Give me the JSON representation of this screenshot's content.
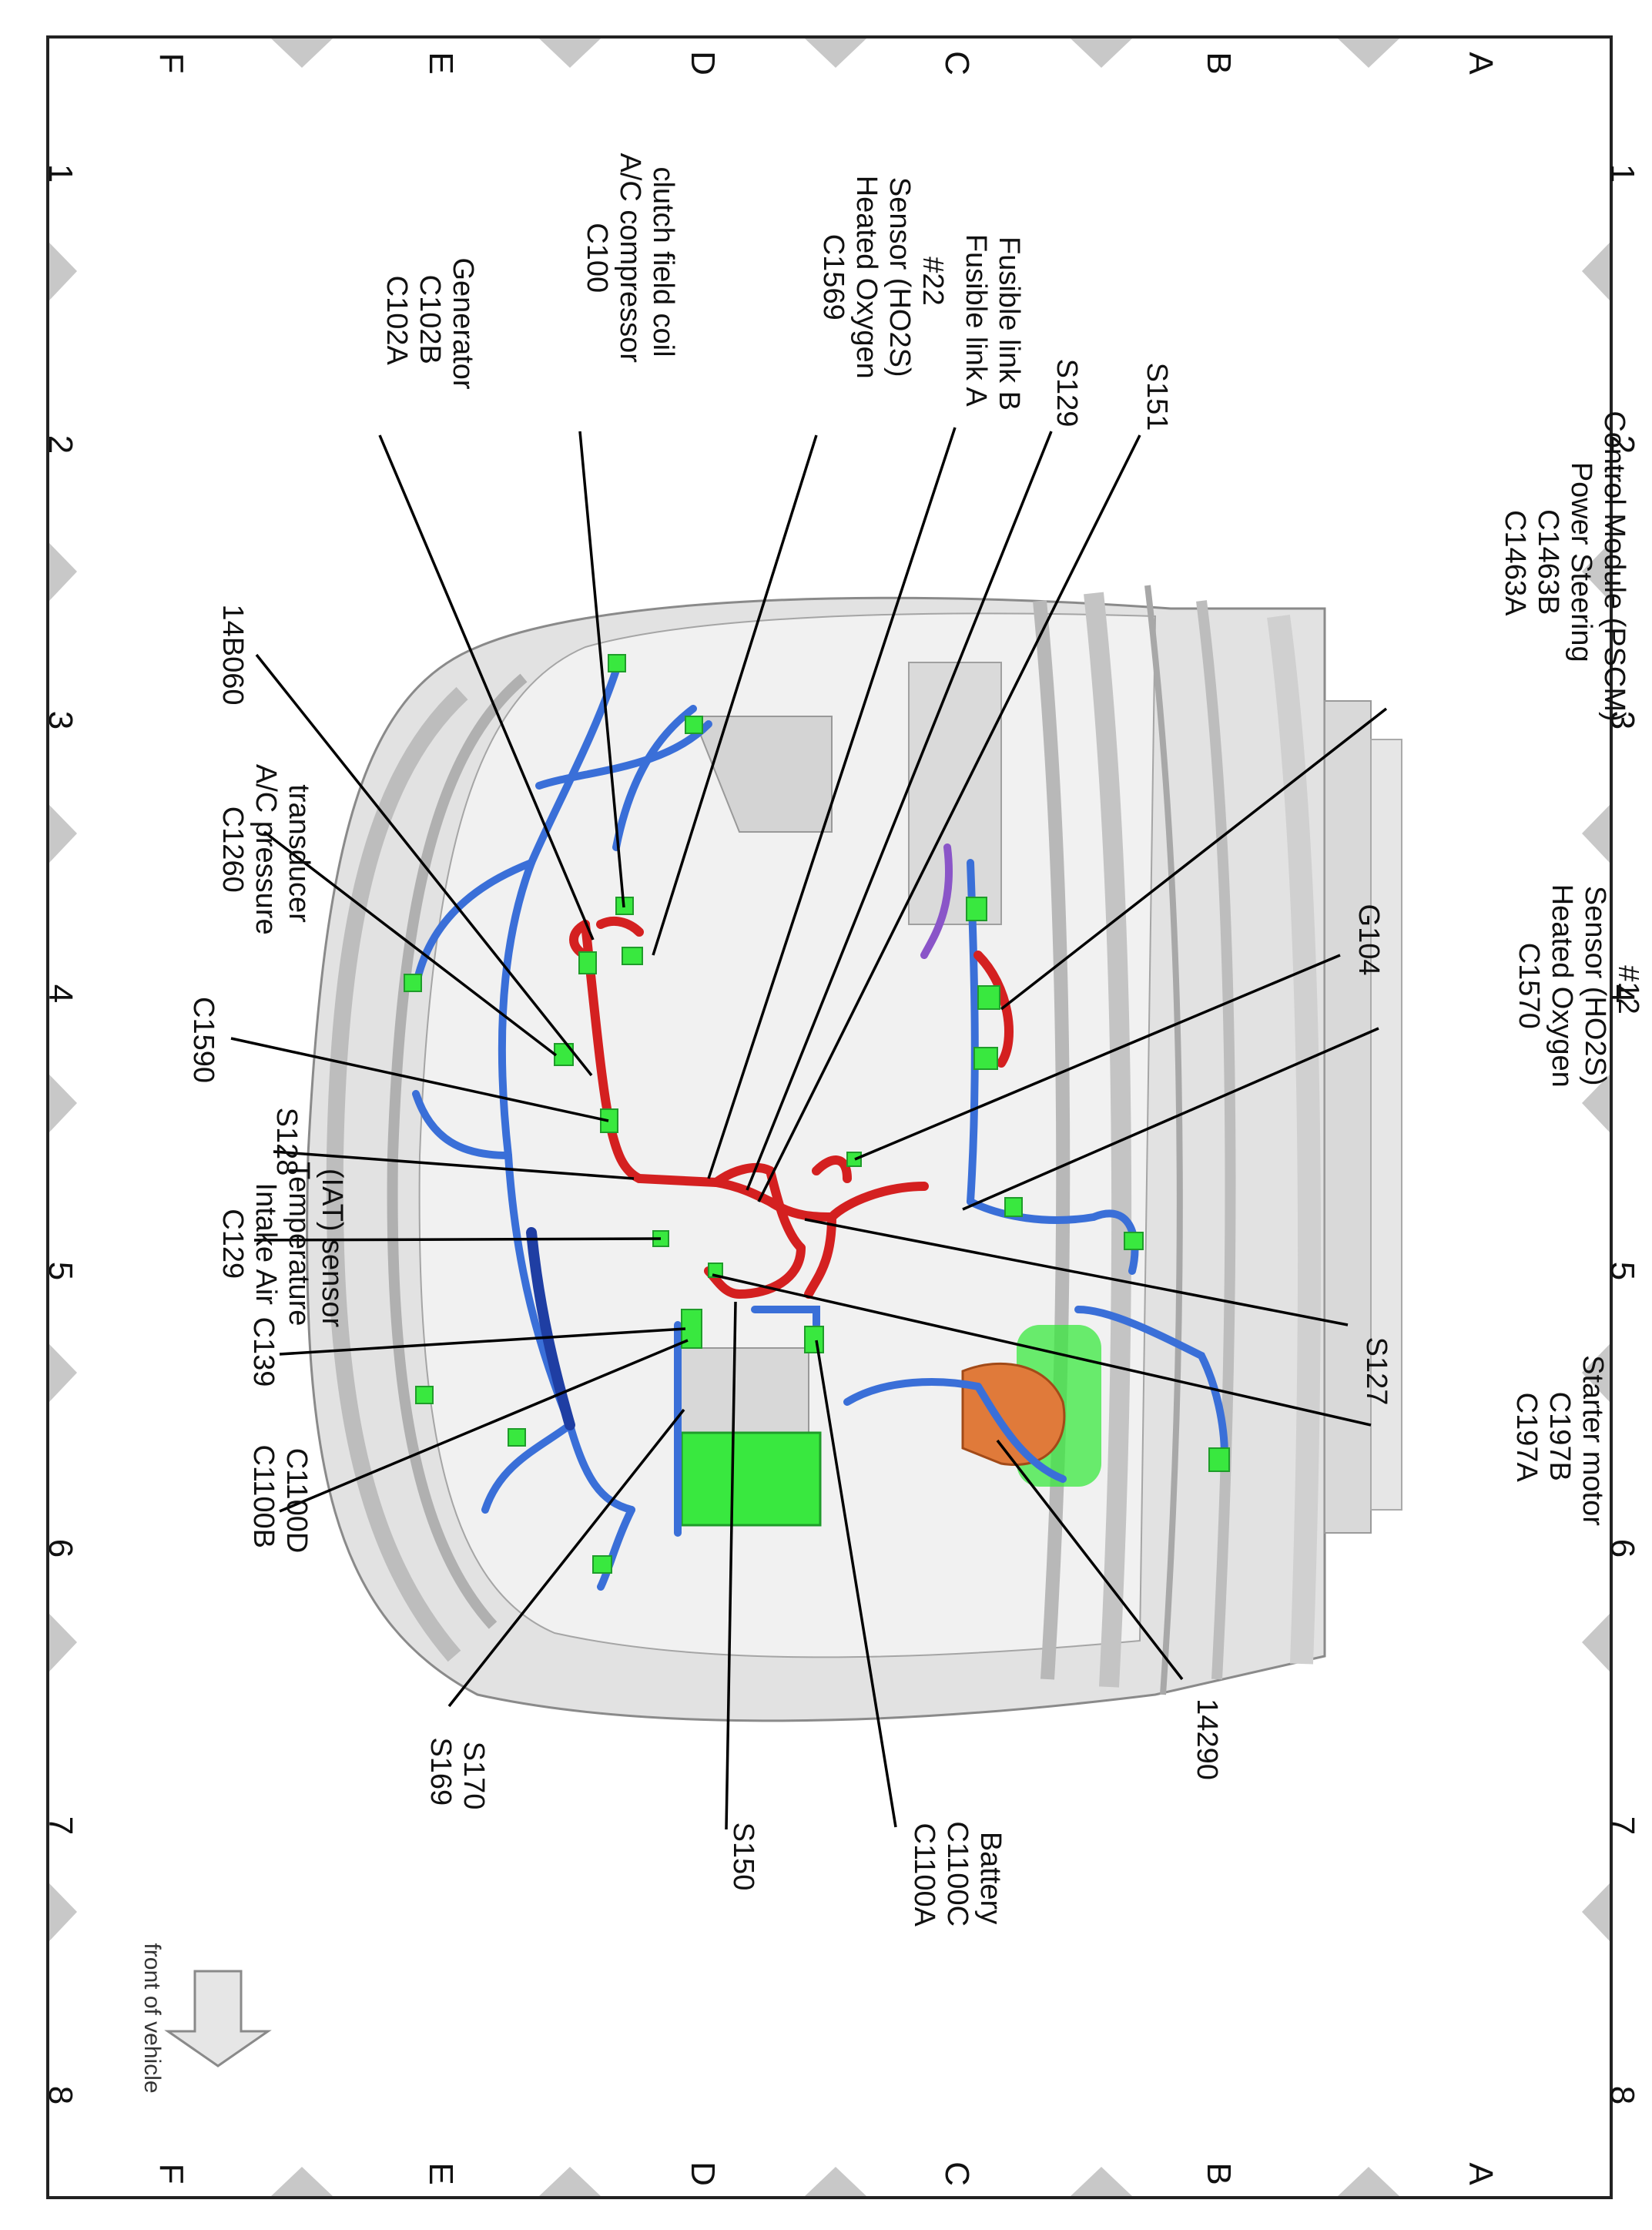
{
  "grid": {
    "rows": [
      "A",
      "B",
      "C",
      "D",
      "E",
      "F"
    ],
    "cols": [
      "1",
      "2",
      "3",
      "4",
      "5",
      "6",
      "7",
      "8"
    ]
  },
  "labels": {
    "c1463": [
      "C1463A",
      "C1463B",
      "Power Steering",
      "Control Module (PSCM)"
    ],
    "c1570": [
      "C1570",
      "Heated Oxygen",
      "Sensor (HO2S)",
      "#12"
    ],
    "g104": [
      "G104"
    ],
    "s127": [
      "S127"
    ],
    "c197": [
      "C197A",
      "C197B",
      "Starter motor"
    ],
    "n14290": [
      "14290"
    ],
    "s151": [
      "S151"
    ],
    "s129": [
      "S129"
    ],
    "fusible": [
      "Fusible link A",
      "Fusible link B"
    ],
    "c1569": [
      "C1569",
      "Heated Oxygen",
      "Sensor (HO2S)",
      "#22"
    ],
    "c100": [
      "C100",
      "A/C compressor",
      "clutch field coil"
    ],
    "c102": [
      "C102A",
      "C102B",
      "Generator"
    ],
    "n14b060": [
      "14B060"
    ],
    "c1260": [
      "C1260",
      "A/C pressure",
      "transducer"
    ],
    "c1590": [
      "C1590"
    ],
    "s128": [
      "S128"
    ],
    "c129": [
      "C129",
      "Intake Air",
      "Temperature",
      "(IAT) sensor"
    ],
    "c139": [
      "C139"
    ],
    "c1100bd": [
      "C1100B",
      "C1100D"
    ],
    "s169": [
      "S169",
      "S170"
    ],
    "s150": [
      "S150"
    ],
    "c1100ac": [
      "C1100A",
      "C1100C",
      "Battery"
    ],
    "front": [
      "front of vehicle"
    ]
  },
  "colors": {
    "wire_red": "#d42020",
    "wire_blue": "#3a6fd8",
    "wire_purple": "#8a55c8",
    "connector_green": "#39e83f",
    "starter_orange": "#e07a3a",
    "body_gray": "#c9c9c9"
  }
}
